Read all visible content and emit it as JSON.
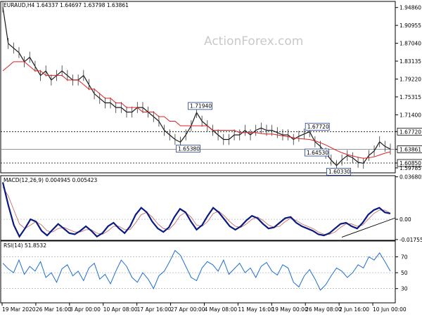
{
  "watermark": "ActionForex.com",
  "chart_data": [
    {
      "type": "line",
      "title": "EURAUD,H4  1.64337 1.64697 1.63798 1.63861",
      "ylim": [
        1.587,
        1.962
      ],
      "y_ticks": [
        "1.94860",
        "1.90955",
        "1.87040",
        "1.83135",
        "1.79220",
        "1.75315",
        "1.71400",
        "1.67720",
        "1.63861",
        "1.60850",
        "1.59785"
      ],
      "x_ticks": [
        "19 Mar 2020",
        "26 Mar 16:00",
        "3 Apr 00:00",
        "10 Apr 08:00",
        "17 Apr 16:00",
        "27 Apr 00:00",
        "4 May 08:00",
        "11 May 16:00",
        "19 May 00:00",
        "26 May 08:00",
        "2 Jun 16:00",
        "10 Jun 00:00"
      ],
      "series": [
        {
          "values": [
            1.95,
            1.87,
            1.86,
            1.85,
            1.83,
            1.84,
            1.82,
            1.8,
            1.81,
            1.79,
            1.8,
            1.81,
            1.8,
            1.79,
            1.79,
            1.8,
            1.78,
            1.76,
            1.75,
            1.74,
            1.74,
            1.73,
            1.73,
            1.72,
            1.72,
            1.73,
            1.73,
            1.72,
            1.71,
            1.7,
            1.68,
            1.67,
            1.66,
            1.654,
            1.67,
            1.69,
            1.719,
            1.7,
            1.69,
            1.68,
            1.67,
            1.66,
            1.66,
            1.67,
            1.67,
            1.68,
            1.67,
            1.68,
            1.685,
            1.68,
            1.68,
            1.675,
            1.67,
            1.67,
            1.66,
            1.667,
            1.672,
            1.677,
            1.655,
            1.645,
            1.63,
            1.615,
            1.603,
            1.615,
            1.625,
            1.62,
            1.61,
            1.608,
            1.625,
            1.635,
            1.655,
            1.645,
            1.639
          ]
        },
        {
          "values": [
            1.81,
            1.82,
            1.83,
            1.83,
            1.83,
            1.82,
            1.81,
            1.81,
            1.8,
            1.8,
            1.8,
            1.8,
            1.79,
            1.79,
            1.79,
            1.78,
            1.77,
            1.77,
            1.76,
            1.75,
            1.75,
            1.74,
            1.74,
            1.73,
            1.73,
            1.73,
            1.72,
            1.72,
            1.72,
            1.71,
            1.71,
            1.7,
            1.7,
            1.69,
            1.69,
            1.69,
            1.69,
            1.69,
            1.69,
            1.68,
            1.68,
            1.68,
            1.68,
            1.68,
            1.675,
            1.675,
            1.675,
            1.675,
            1.673,
            1.672,
            1.672,
            1.67,
            1.668,
            1.666,
            1.664,
            1.662,
            1.661,
            1.66,
            1.657,
            1.653,
            1.648,
            1.642,
            1.636,
            1.631,
            1.627,
            1.624,
            1.621,
            1.619,
            1.62,
            1.622,
            1.626,
            1.63,
            1.633
          ]
        }
      ],
      "horizontal_levels": [
        1.6772,
        1.63861,
        1.6085
      ],
      "annotations": [
        {
          "label": "1.65380",
          "value": 1.6538
        },
        {
          "label": "1.71940",
          "value": 1.7194
        },
        {
          "label": "1.67720",
          "value": 1.6772
        },
        {
          "label": "1.64530",
          "value": 1.6453
        },
        {
          "label": "1.60330",
          "value": 1.6033
        }
      ]
    },
    {
      "type": "line",
      "title": "MACD(12,26,9) 0.004945 0.005423",
      "ylim": [
        -0.0182,
        0.0378
      ],
      "y_ticks": [
        "0.036805",
        "0.00",
        "-0.017553"
      ],
      "series": [
        {
          "values": [
            0.032,
            0.012,
            -0.005,
            -0.015,
            -0.008,
            0.0,
            -0.002,
            -0.01,
            -0.014,
            -0.009,
            -0.004,
            -0.008,
            -0.012,
            -0.013,
            -0.01,
            -0.006,
            -0.01,
            -0.015,
            -0.012,
            -0.006,
            -0.003,
            -0.008,
            -0.012,
            -0.006,
            0.004,
            0.01,
            0.006,
            -0.002,
            -0.008,
            -0.011,
            -0.007,
            0.002,
            0.009,
            0.006,
            -0.002,
            -0.009,
            -0.005,
            0.003,
            0.01,
            0.006,
            0.0,
            -0.006,
            -0.009,
            -0.006,
            -0.001,
            0.003,
            0.001,
            -0.004,
            -0.008,
            -0.007,
            -0.003,
            0.001,
            0.002,
            -0.003,
            -0.006,
            -0.008,
            -0.01,
            -0.013,
            -0.014,
            -0.012,
            -0.008,
            -0.004,
            -0.003,
            -0.006,
            -0.008,
            -0.003,
            0.004,
            0.008,
            0.01,
            0.006,
            0.005
          ]
        },
        {
          "values": [
            0.028,
            0.02,
            0.008,
            -0.004,
            -0.008,
            -0.005,
            -0.002,
            -0.005,
            -0.01,
            -0.011,
            -0.008,
            -0.007,
            -0.009,
            -0.011,
            -0.011,
            -0.009,
            -0.009,
            -0.012,
            -0.013,
            -0.01,
            -0.006,
            -0.006,
            -0.009,
            -0.009,
            -0.003,
            0.004,
            0.006,
            0.002,
            -0.004,
            -0.008,
            -0.009,
            -0.004,
            0.003,
            0.006,
            0.002,
            -0.005,
            -0.006,
            -0.002,
            0.005,
            0.007,
            0.003,
            -0.002,
            -0.006,
            -0.007,
            -0.004,
            0.0,
            0.002,
            -0.001,
            -0.005,
            -0.007,
            -0.006,
            -0.002,
            0.001,
            -0.001,
            -0.004,
            -0.006,
            -0.008,
            -0.011,
            -0.013,
            -0.013,
            -0.011,
            -0.007,
            -0.004,
            -0.004,
            -0.006,
            -0.005,
            0.0,
            0.005,
            0.008,
            0.008,
            0.0054
          ]
        }
      ],
      "trendline": [
        [
          -0.014,
          0.0
        ],
        [
          -0.004,
          1.0
        ]
      ]
    },
    {
      "type": "line",
      "title": "RSI(14) 51.8532",
      "ylim": [
        12,
        90
      ],
      "y_ticks": [
        "70",
        "50",
        "30"
      ],
      "reference_levels": [
        70,
        50,
        30
      ],
      "series": [
        {
          "values": [
            62,
            55,
            50,
            66,
            48,
            58,
            52,
            64,
            44,
            50,
            38,
            55,
            60,
            46,
            52,
            40,
            56,
            62,
            42,
            48,
            36,
            52,
            66,
            58,
            44,
            38,
            50,
            42,
            30,
            46,
            52,
            64,
            78,
            72,
            58,
            44,
            40,
            56,
            64,
            60,
            52,
            66,
            48,
            55,
            62,
            50,
            56,
            44,
            58,
            63,
            52,
            47,
            60,
            56,
            38,
            32,
            46,
            54,
            42,
            28,
            35,
            46,
            56,
            52,
            44,
            50,
            60,
            56,
            70,
            66,
            75,
            64,
            52
          ]
        }
      ]
    }
  ]
}
